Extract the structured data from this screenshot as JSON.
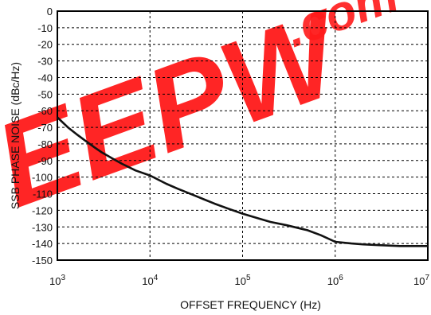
{
  "chart_data": {
    "type": "line",
    "title": "",
    "xlabel": "OFFSET FREQUENCY (Hz)",
    "ylabel": "SSB PHASE NOISE (dBc/Hz)",
    "x_scale": "log",
    "xlim": [
      1000,
      10000000
    ],
    "ylim": [
      -150,
      0
    ],
    "x_ticks": [
      1000,
      10000,
      100000,
      1000000,
      10000000
    ],
    "x_tick_labels": [
      {
        "base": "10",
        "exp": "3"
      },
      {
        "base": "10",
        "exp": "4"
      },
      {
        "base": "10",
        "exp": "5"
      },
      {
        "base": "10",
        "exp": "6"
      },
      {
        "base": "10",
        "exp": "7"
      }
    ],
    "y_ticks": [
      0,
      -10,
      -20,
      -30,
      -40,
      -50,
      -60,
      -70,
      -80,
      -90,
      -100,
      -110,
      -120,
      -130,
      -140,
      -150
    ],
    "y_tick_labels": [
      "0",
      "-10",
      "-20",
      "-30",
      "-40",
      "-50",
      "-60",
      "-70",
      "-80",
      "-90",
      "-100",
      "-110",
      "-120",
      "-130",
      "-140",
      "-150"
    ],
    "grid": true,
    "line_color": "#111111",
    "series": [
      {
        "x": [
          1000,
          1300,
          1600,
          2000,
          2500,
          3000,
          4000,
          5000,
          7000,
          10000,
          15000,
          20000,
          30000,
          50000,
          70000,
          100000,
          150000,
          200000,
          300000,
          500000,
          700000,
          1000000,
          1500000,
          2000000,
          3000000,
          5000000,
          7000000,
          10000000
        ],
        "y": [
          -64,
          -70,
          -74,
          -78,
          -82,
          -85,
          -89,
          -92,
          -96,
          -99,
          -104,
          -107,
          -111,
          -116,
          -119,
          -122,
          -125,
          -127,
          -129,
          -132,
          -135,
          -139,
          -140,
          -140.5,
          -141,
          -141.5,
          -141.5,
          -141.5
        ]
      }
    ]
  },
  "watermark": {
    "text": "EEPW",
    "suffix": ".com",
    "color": "#ff1a1a"
  }
}
